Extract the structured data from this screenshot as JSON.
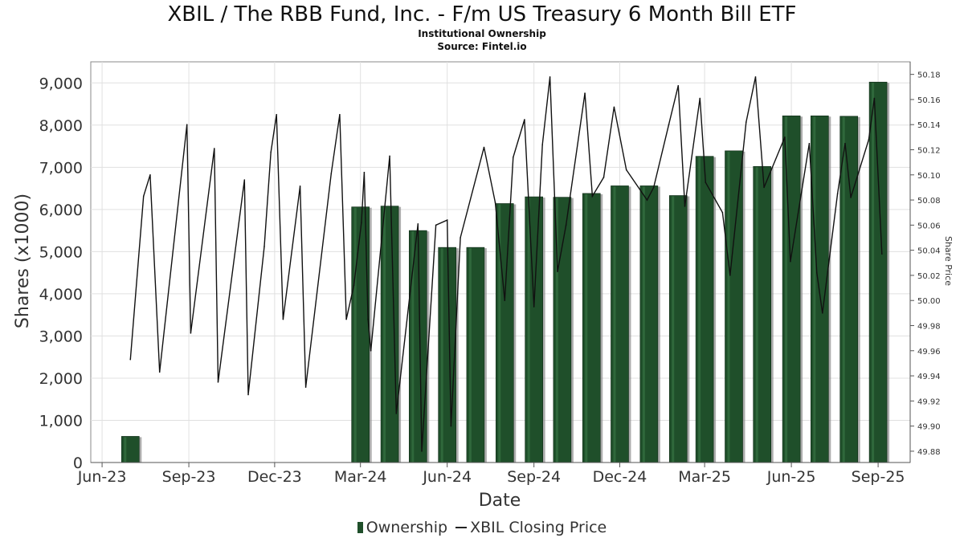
{
  "header": {
    "title": "XBIL / The RBB Fund, Inc. - F/m US Treasury 6 Month Bill ETF",
    "subtitle": "Institutional Ownership",
    "source": "Source: Fintel.io"
  },
  "colors": {
    "bar_fill": "#1f4f2a",
    "bar_shadow": "#8a8a8a",
    "line": "#111111",
    "grid": "#e0e0e0",
    "frame": "#888888"
  },
  "chart_data": {
    "type": "bar",
    "title": "XBIL / The RBB Fund, Inc. - F/m US Treasury 6 Month Bill ETF",
    "subtitle": "Institutional Ownership",
    "xlabel": "Date",
    "ylabel": "Shares (x1000)",
    "y2label": "Share Price",
    "xlim": [
      "2023-05-20",
      "2025-10-05"
    ],
    "ylim": [
      0,
      9500
    ],
    "y2lim": [
      49.871,
      50.19
    ],
    "grid": true,
    "legend_position": "bottom-center",
    "x_ticks": [
      {
        "date": "2023-06-01",
        "label": "Jun-23"
      },
      {
        "date": "2023-09-01",
        "label": "Sep-23"
      },
      {
        "date": "2023-12-01",
        "label": "Dec-23"
      },
      {
        "date": "2024-03-01",
        "label": "Mar-24"
      },
      {
        "date": "2024-06-01",
        "label": "Jun-24"
      },
      {
        "date": "2024-09-01",
        "label": "Sep-24"
      },
      {
        "date": "2024-12-01",
        "label": "Dec-24"
      },
      {
        "date": "2025-03-01",
        "label": "Mar-25"
      },
      {
        "date": "2025-06-01",
        "label": "Jun-25"
      },
      {
        "date": "2025-09-01",
        "label": "Sep-25"
      }
    ],
    "y_ticks": [
      {
        "value": 0,
        "label": "0"
      },
      {
        "value": 1000,
        "label": "1,000"
      },
      {
        "value": 2000,
        "label": "2,000"
      },
      {
        "value": 3000,
        "label": "3,000"
      },
      {
        "value": 4000,
        "label": "4,000"
      },
      {
        "value": 5000,
        "label": "5,000"
      },
      {
        "value": 6000,
        "label": "6,000"
      },
      {
        "value": 7000,
        "label": "7,000"
      },
      {
        "value": 8000,
        "label": "8,000"
      },
      {
        "value": 9000,
        "label": "9,000"
      }
    ],
    "y2_ticks": [
      {
        "value": 49.88,
        "label": "49.88"
      },
      {
        "value": 49.9,
        "label": "49.90"
      },
      {
        "value": 49.92,
        "label": "49.92"
      },
      {
        "value": 49.94,
        "label": "49.94"
      },
      {
        "value": 49.96,
        "label": "49.96"
      },
      {
        "value": 49.98,
        "label": "49.98"
      },
      {
        "value": 50.0,
        "label": "50.00"
      },
      {
        "value": 50.02,
        "label": "50.02"
      },
      {
        "value": 50.04,
        "label": "50.04"
      },
      {
        "value": 50.06,
        "label": "50.06"
      },
      {
        "value": 50.08,
        "label": "50.08"
      },
      {
        "value": 50.1,
        "label": "50.10"
      },
      {
        "value": 50.12,
        "label": "50.12"
      },
      {
        "value": 50.14,
        "label": "50.14"
      },
      {
        "value": 50.16,
        "label": "50.16"
      },
      {
        "value": 50.18,
        "label": "50.18"
      }
    ],
    "series": [
      {
        "name": "Ownership",
        "kind": "bar",
        "points": [
          {
            "x": "2023-07-01",
            "y": 620
          },
          {
            "x": "2024-03-01",
            "y": 6060
          },
          {
            "x": "2024-04-01",
            "y": 6080
          },
          {
            "x": "2024-05-01",
            "y": 5500
          },
          {
            "x": "2024-06-01",
            "y": 5100
          },
          {
            "x": "2024-07-01",
            "y": 5100
          },
          {
            "x": "2024-08-01",
            "y": 6140
          },
          {
            "x": "2024-09-01",
            "y": 6300
          },
          {
            "x": "2024-10-01",
            "y": 6290
          },
          {
            "x": "2024-11-01",
            "y": 6380
          },
          {
            "x": "2024-12-01",
            "y": 6560
          },
          {
            "x": "2025-01-01",
            "y": 6560
          },
          {
            "x": "2025-02-01",
            "y": 6330
          },
          {
            "x": "2025-03-01",
            "y": 7260
          },
          {
            "x": "2025-04-01",
            "y": 7390
          },
          {
            "x": "2025-05-01",
            "y": 7020
          },
          {
            "x": "2025-06-01",
            "y": 8220
          },
          {
            "x": "2025-07-01",
            "y": 8220
          },
          {
            "x": "2025-08-01",
            "y": 8210
          },
          {
            "x": "2025-09-01",
            "y": 9020
          }
        ]
      },
      {
        "name": "XBIL Closing Price",
        "kind": "line",
        "axis": "right",
        "points": [
          {
            "x": "2023-07-01",
            "y": 49.953
          },
          {
            "x": "2023-07-15",
            "y": 50.083
          },
          {
            "x": "2023-07-22",
            "y": 50.1
          },
          {
            "x": "2023-08-01",
            "y": 49.943
          },
          {
            "x": "2023-08-30",
            "y": 50.14
          },
          {
            "x": "2023-09-03",
            "y": 49.974
          },
          {
            "x": "2023-09-28",
            "y": 50.121
          },
          {
            "x": "2023-10-02",
            "y": 49.935
          },
          {
            "x": "2023-10-30",
            "y": 50.096
          },
          {
            "x": "2023-11-03",
            "y": 49.925
          },
          {
            "x": "2023-11-20",
            "y": 50.043
          },
          {
            "x": "2023-11-27",
            "y": 50.118
          },
          {
            "x": "2023-12-03",
            "y": 50.148
          },
          {
            "x": "2023-12-10",
            "y": 49.985
          },
          {
            "x": "2023-12-28",
            "y": 50.091
          },
          {
            "x": "2024-01-03",
            "y": 49.931
          },
          {
            "x": "2024-01-30",
            "y": 50.101
          },
          {
            "x": "2024-02-08",
            "y": 50.148
          },
          {
            "x": "2024-02-15",
            "y": 49.985
          },
          {
            "x": "2024-02-23",
            "y": 50.012
          },
          {
            "x": "2024-03-02",
            "y": 50.062
          },
          {
            "x": "2024-03-05",
            "y": 50.102
          },
          {
            "x": "2024-03-09",
            "y": 49.985
          },
          {
            "x": "2024-03-12",
            "y": 49.96
          },
          {
            "x": "2024-04-01",
            "y": 50.115
          },
          {
            "x": "2024-04-08",
            "y": 49.91
          },
          {
            "x": "2024-05-01",
            "y": 50.061
          },
          {
            "x": "2024-05-05",
            "y": 49.88
          },
          {
            "x": "2024-05-20",
            "y": 50.06
          },
          {
            "x": "2024-06-01",
            "y": 50.064
          },
          {
            "x": "2024-06-05",
            "y": 49.9
          },
          {
            "x": "2024-06-15",
            "y": 50.05
          },
          {
            "x": "2024-07-10",
            "y": 50.122
          },
          {
            "x": "2024-07-22",
            "y": 50.078
          },
          {
            "x": "2024-08-01",
            "y": 50.0
          },
          {
            "x": "2024-08-10",
            "y": 50.114
          },
          {
            "x": "2024-08-22",
            "y": 50.144
          },
          {
            "x": "2024-09-01",
            "y": 49.995
          },
          {
            "x": "2024-09-10",
            "y": 50.124
          },
          {
            "x": "2024-09-18",
            "y": 50.178
          },
          {
            "x": "2024-09-26",
            "y": 50.023
          },
          {
            "x": "2024-10-05",
            "y": 50.06
          },
          {
            "x": "2024-10-25",
            "y": 50.165
          },
          {
            "x": "2024-11-02",
            "y": 50.083
          },
          {
            "x": "2024-11-14",
            "y": 50.098
          },
          {
            "x": "2024-11-25",
            "y": 50.154
          },
          {
            "x": "2024-12-08",
            "y": 50.104
          },
          {
            "x": "2024-12-30",
            "y": 50.08
          },
          {
            "x": "2025-01-06",
            "y": 50.09
          },
          {
            "x": "2025-01-22",
            "y": 50.14
          },
          {
            "x": "2025-02-01",
            "y": 50.171
          },
          {
            "x": "2025-02-08",
            "y": 50.075
          },
          {
            "x": "2025-02-24",
            "y": 50.161
          },
          {
            "x": "2025-03-02",
            "y": 50.094
          },
          {
            "x": "2025-03-20",
            "y": 50.07
          },
          {
            "x": "2025-03-28",
            "y": 50.02
          },
          {
            "x": "2025-04-14",
            "y": 50.142
          },
          {
            "x": "2025-04-24",
            "y": 50.178
          },
          {
            "x": "2025-05-03",
            "y": 50.09
          },
          {
            "x": "2025-05-25",
            "y": 50.13
          },
          {
            "x": "2025-05-31",
            "y": 50.031
          },
          {
            "x": "2025-06-20",
            "y": 50.125
          },
          {
            "x": "2025-06-28",
            "y": 50.022
          },
          {
            "x": "2025-07-04",
            "y": 49.99
          },
          {
            "x": "2025-07-20",
            "y": 50.085
          },
          {
            "x": "2025-07-28",
            "y": 50.125
          },
          {
            "x": "2025-08-03",
            "y": 50.082
          },
          {
            "x": "2025-08-22",
            "y": 50.128
          },
          {
            "x": "2025-08-28",
            "y": 50.161
          },
          {
            "x": "2025-09-05",
            "y": 50.037
          }
        ]
      }
    ]
  }
}
